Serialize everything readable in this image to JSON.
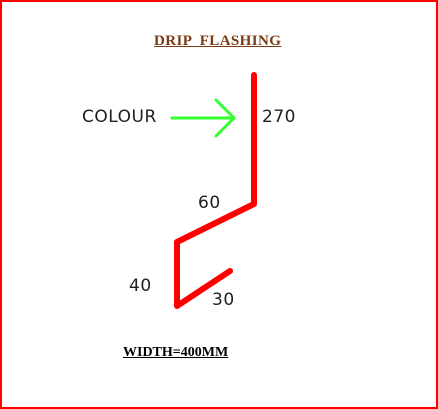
{
  "title": "DRIP  FLASHING",
  "colour_label": "COLOUR",
  "dimensions": {
    "top_leg": "270",
    "slope": "60",
    "drip_leg": "40",
    "kick": "30"
  },
  "width_label": "WIDTH=400MM",
  "colors": {
    "border": "#ff0000",
    "profile": "#ff0000",
    "arrow": "#33ff33",
    "title": "#7a3a12"
  },
  "icons": [
    "colour-arrow-icon"
  ]
}
